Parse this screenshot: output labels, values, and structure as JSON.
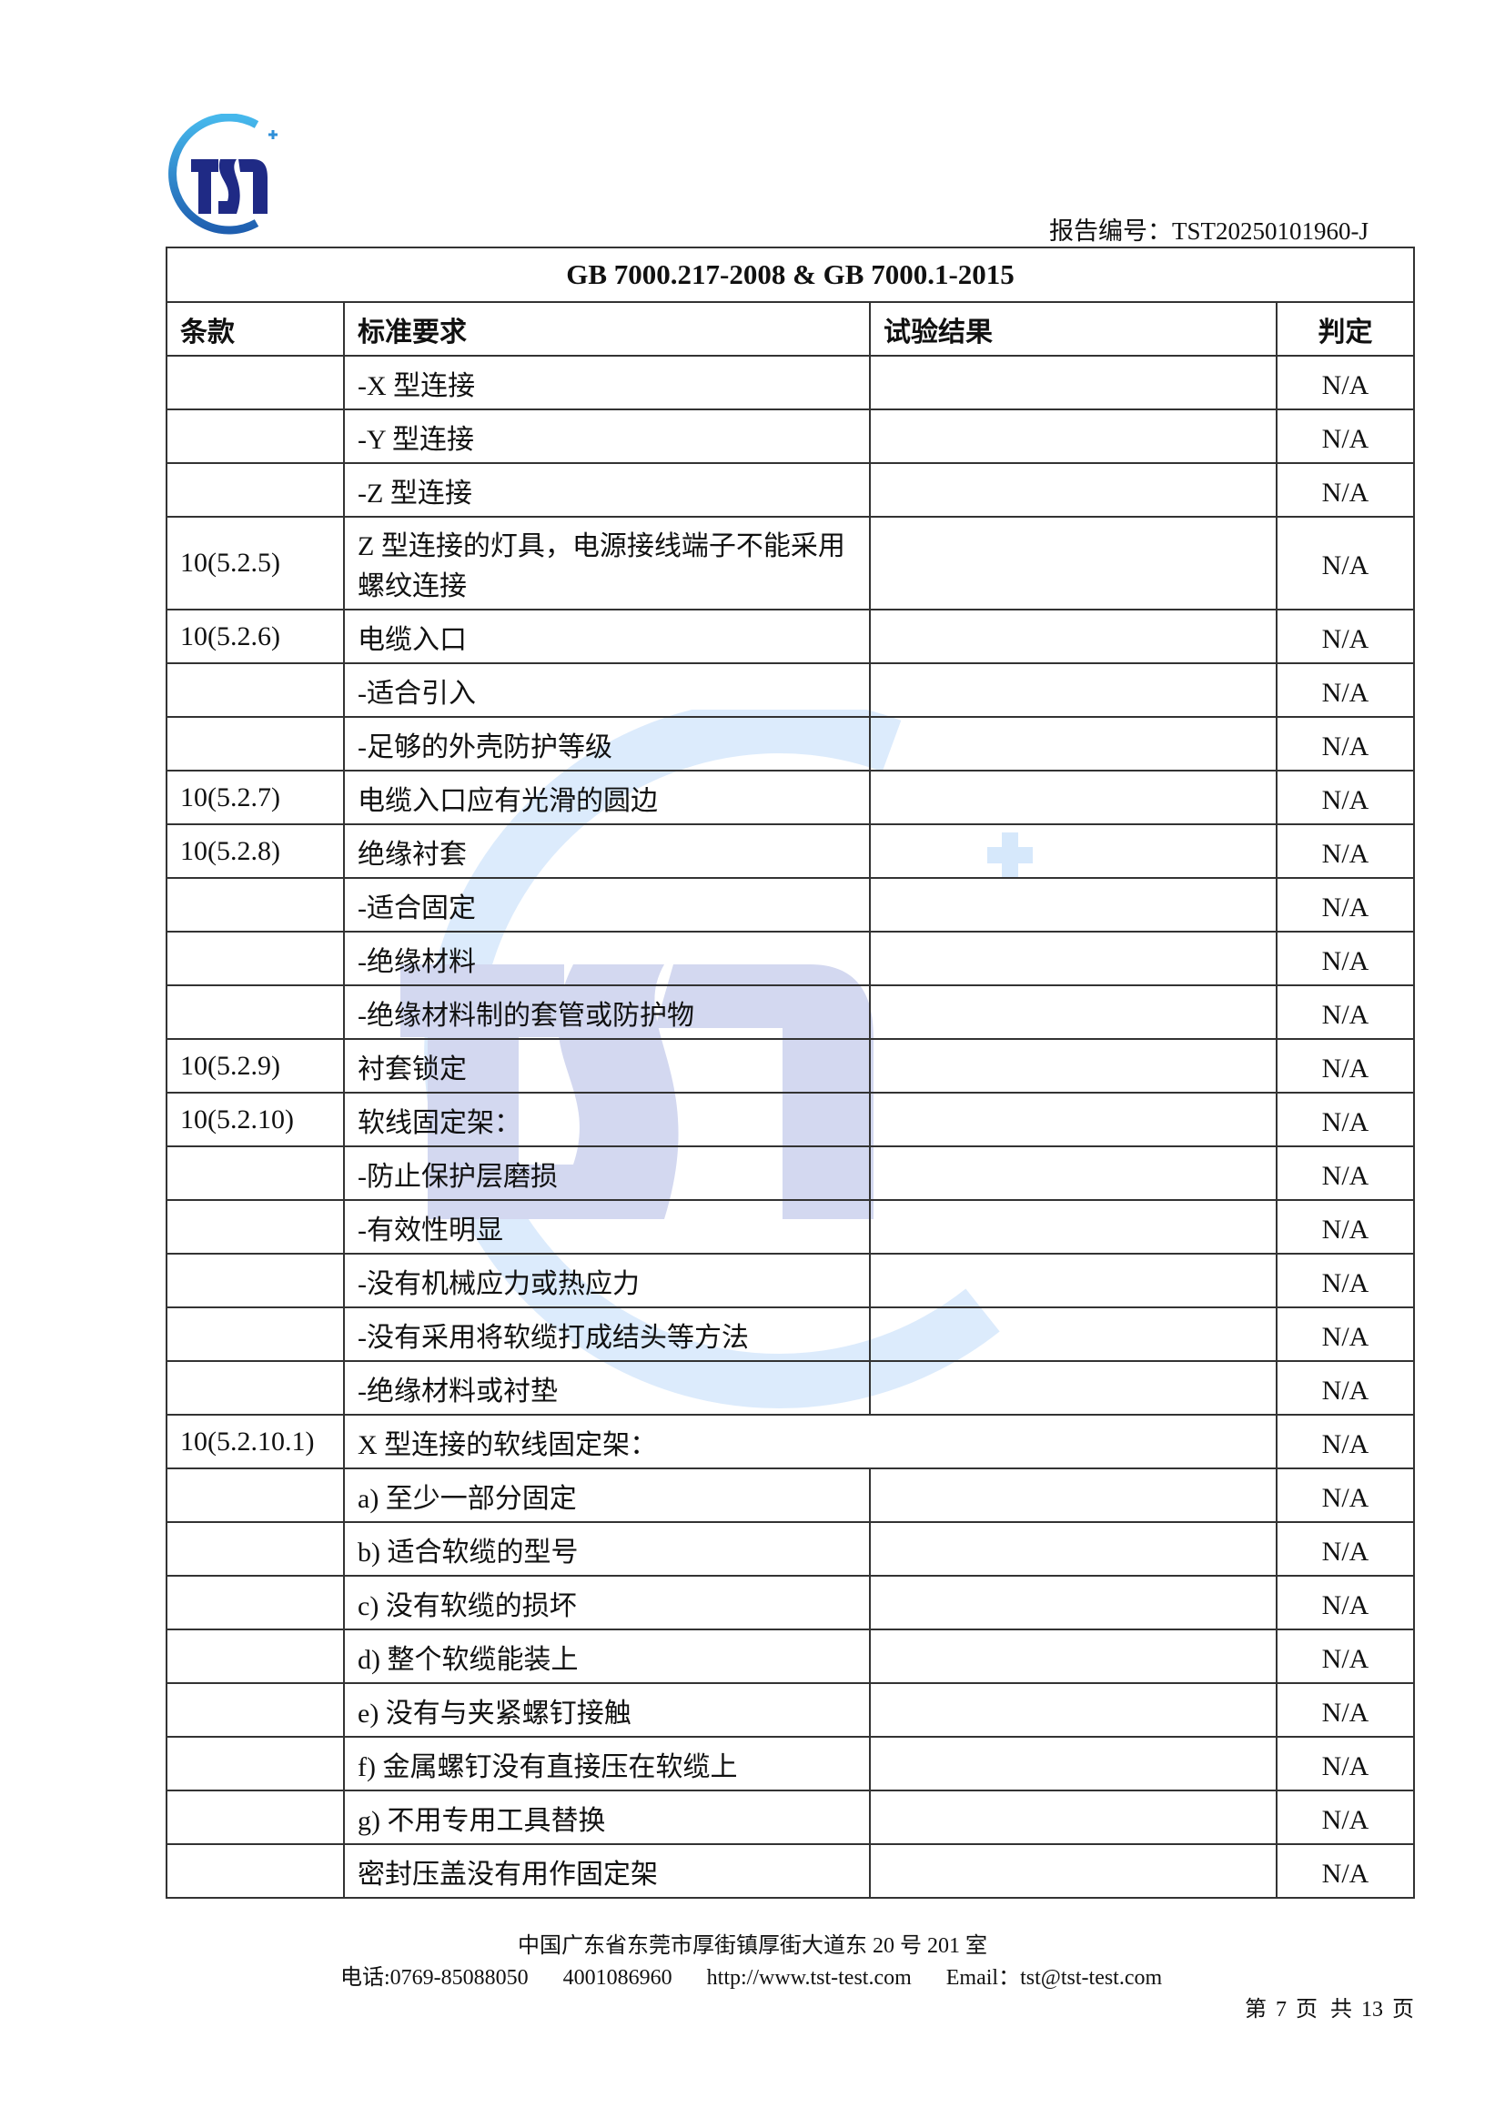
{
  "header": {
    "logo_text": "TST",
    "report_number_label": "报告编号：",
    "report_number": "TST20250101960-J"
  },
  "table": {
    "title": "GB 7000.217-2008 & GB 7000.1-2015",
    "columns": [
      "条款",
      "标准要求",
      "试验结果",
      "判定"
    ],
    "rows": [
      {
        "clause": "",
        "requirement": "-X 型连接",
        "result": "",
        "verdict": "N/A"
      },
      {
        "clause": "",
        "requirement": "-Y 型连接",
        "result": "",
        "verdict": "N/A"
      },
      {
        "clause": "",
        "requirement": "-Z 型连接",
        "result": "",
        "verdict": "N/A"
      },
      {
        "clause": "10(5.2.5)",
        "requirement": "Z 型连接的灯具，电源接线端子不能采用螺纹连接",
        "result": "",
        "verdict": "N/A"
      },
      {
        "clause": "10(5.2.6)",
        "requirement": "电缆入口",
        "result": "",
        "verdict": "N/A"
      },
      {
        "clause": "",
        "requirement": "-适合引入",
        "result": "",
        "verdict": "N/A"
      },
      {
        "clause": "",
        "requirement": "-足够的外壳防护等级",
        "result": "",
        "verdict": "N/A"
      },
      {
        "clause": "10(5.2.7)",
        "requirement": "电缆入口应有光滑的圆边",
        "result": "",
        "verdict": "N/A"
      },
      {
        "clause": "10(5.2.8)",
        "requirement": "绝缘衬套",
        "result": "",
        "verdict": "N/A"
      },
      {
        "clause": "",
        "requirement": "-适合固定",
        "result": "",
        "verdict": "N/A"
      },
      {
        "clause": "",
        "requirement": "-绝缘材料",
        "result": "",
        "verdict": "N/A"
      },
      {
        "clause": "",
        "requirement": "-绝缘材料制的套管或防护物",
        "result": "",
        "verdict": "N/A"
      },
      {
        "clause": "10(5.2.9)",
        "requirement": "衬套锁定",
        "result": "",
        "verdict": "N/A"
      },
      {
        "clause": "10(5.2.10)",
        "requirement": "软线固定架：",
        "result": "",
        "verdict": "N/A"
      },
      {
        "clause": "",
        "requirement": "-防止保护层磨损",
        "result": "",
        "verdict": "N/A"
      },
      {
        "clause": "",
        "requirement": "-有效性明显",
        "result": "",
        "verdict": "N/A"
      },
      {
        "clause": "",
        "requirement": "-没有机械应力或热应力",
        "result": "",
        "verdict": "N/A"
      },
      {
        "clause": "",
        "requirement": "-没有采用将软缆打成结头等方法",
        "result": "",
        "verdict": "N/A"
      },
      {
        "clause": "",
        "requirement": "-绝缘材料或衬垫",
        "result": "",
        "verdict": "N/A"
      },
      {
        "clause": "10(5.2.10.1)",
        "requirement": "X 型连接的软线固定架：",
        "result": "",
        "verdict": "N/A"
      },
      {
        "clause": "",
        "requirement": "a)  至少一部分固定",
        "result": "",
        "verdict": "N/A"
      },
      {
        "clause": "",
        "requirement": "b)  适合软缆的型号",
        "result": "",
        "verdict": "N/A"
      },
      {
        "clause": "",
        "requirement": "c)  没有软缆的损坏",
        "result": "",
        "verdict": "N/A"
      },
      {
        "clause": "",
        "requirement": "d)  整个软缆能装上",
        "result": "",
        "verdict": "N/A"
      },
      {
        "clause": "",
        "requirement": "e)  没有与夹紧螺钉接触",
        "result": "",
        "verdict": "N/A"
      },
      {
        "clause": "",
        "requirement": "f)  金属螺钉没有直接压在软缆上",
        "result": "",
        "verdict": "N/A"
      },
      {
        "clause": "",
        "requirement": "g)  不用专用工具替换",
        "result": "",
        "verdict": "N/A"
      },
      {
        "clause": "",
        "requirement": "密封压盖没有用作固定架",
        "result": "",
        "verdict": "N/A"
      }
    ]
  },
  "footer": {
    "address": "中国广东省东莞市厚街镇厚街大道东 20 号 201 室",
    "phone": "电话:0769-85088050",
    "hotline": "4001086960",
    "website": "http://www.tst-test.com",
    "email": "Email：tst@tst-test.com",
    "page": {
      "prefix": "第",
      "current": "7",
      "middle": "页 共",
      "total": "13",
      "suffix": "页"
    }
  },
  "colors": {
    "logo_navy": "#1f2a85",
    "logo_blue": "#2f8fd8",
    "watermark_lavender": "#d3d8f0",
    "watermark_blue": "#d6e8fb"
  }
}
